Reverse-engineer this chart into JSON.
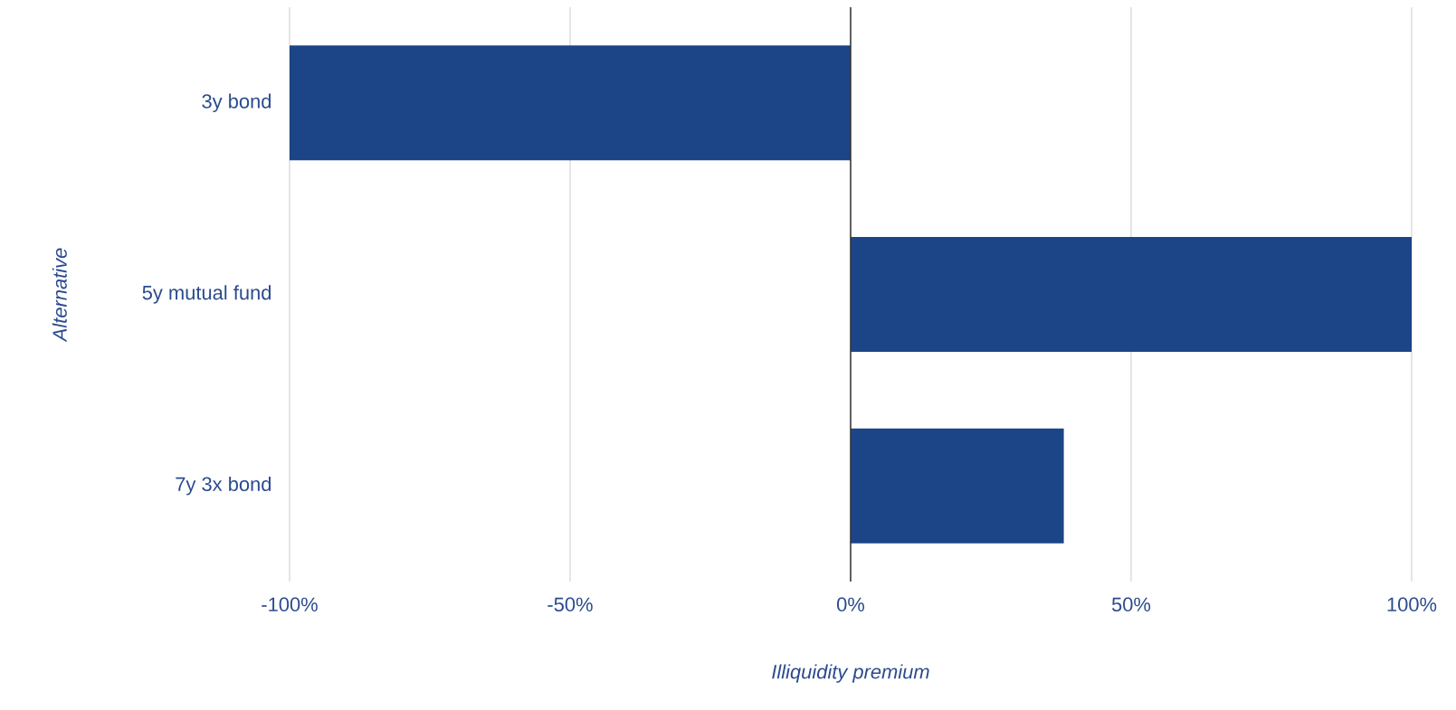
{
  "chart_data": {
    "type": "bar",
    "orientation": "horizontal",
    "xlabel": "Illiquidity premium",
    "ylabel": "Alternative",
    "categories": [
      "3y bond",
      "5y mutual fund",
      "7y 3x bond"
    ],
    "values": [
      -100,
      100,
      38
    ],
    "color": "#1c4587",
    "xlim": [
      -100,
      100
    ],
    "xticks": [
      {
        "value": -100,
        "label": "-100%"
      },
      {
        "value": -50,
        "label": "-50%"
      },
      {
        "value": 0,
        "label": "0%"
      },
      {
        "value": 50,
        "label": "50%"
      },
      {
        "value": 100,
        "label": "100%"
      }
    ],
    "grid": "x",
    "ref_lines": [
      {
        "axis": "x",
        "value": 0,
        "color": "#333333"
      }
    ]
  }
}
